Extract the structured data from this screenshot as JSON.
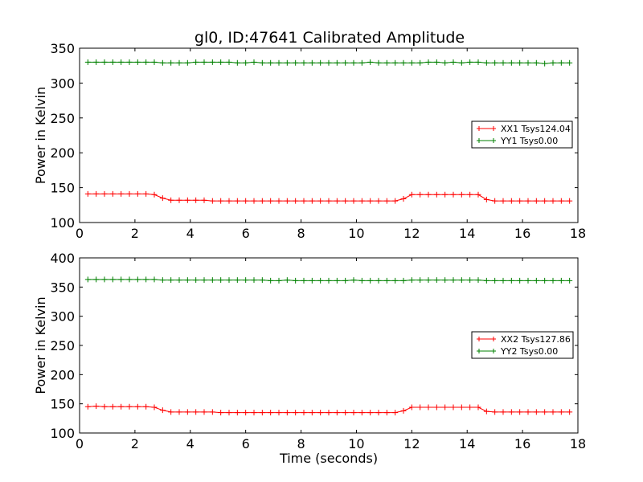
{
  "title": "gl0, ID:47641 Calibrated Amplitude",
  "chart_data": [
    {
      "type": "line",
      "title": "gl0, ID:47641 Calibrated Amplitude",
      "xlabel": "",
      "ylabel": "Power in Kelvin",
      "xlim": [
        0,
        18
      ],
      "ylim": [
        100,
        350
      ],
      "xticks": [
        0,
        2,
        4,
        6,
        8,
        10,
        12,
        14,
        16,
        18
      ],
      "yticks": [
        100,
        150,
        200,
        250,
        300,
        350
      ],
      "legend_position": "center-right",
      "x": [
        0.3,
        0.6,
        0.9,
        1.2,
        1.5,
        1.8,
        2.1,
        2.4,
        2.7,
        3.0,
        3.3,
        3.6,
        3.9,
        4.2,
        4.5,
        4.8,
        5.1,
        5.4,
        5.7,
        6.0,
        6.3,
        6.6,
        6.9,
        7.2,
        7.5,
        7.8,
        8.1,
        8.4,
        8.7,
        9.0,
        9.3,
        9.6,
        9.9,
        10.2,
        10.5,
        10.8,
        11.1,
        11.4,
        11.7,
        12.0,
        12.3,
        12.6,
        12.9,
        13.2,
        13.5,
        13.8,
        14.1,
        14.4,
        14.7,
        15.0,
        15.3,
        15.6,
        15.9,
        16.2,
        16.5,
        16.8,
        17.1,
        17.4,
        17.7
      ],
      "series": [
        {
          "name": "XX1 Tsys124.04",
          "color": "#ff0000",
          "values": [
            141,
            141,
            141,
            141,
            141,
            141,
            141,
            141,
            140,
            135,
            132,
            132,
            132,
            132,
            132,
            131,
            131,
            131,
            131,
            131,
            131,
            131,
            131,
            131,
            131,
            131,
            131,
            131,
            131,
            131,
            131,
            131,
            131,
            131,
            131,
            131,
            131,
            131,
            134,
            140,
            140,
            140,
            140,
            140,
            140,
            140,
            140,
            140,
            133,
            131,
            131,
            131,
            131,
            131,
            131,
            131,
            131,
            131,
            131
          ]
        },
        {
          "name": "YY1 Tsys0.00",
          "color": "#008000",
          "values": [
            330,
            330,
            330,
            330,
            330,
            330,
            330,
            330,
            330,
            329,
            329,
            329,
            329,
            330,
            330,
            330,
            330,
            330,
            329,
            329,
            330,
            329,
            329,
            329,
            329,
            329,
            329,
            329,
            329,
            329,
            329,
            329,
            329,
            329,
            330,
            329,
            329,
            329,
            329,
            329,
            329,
            330,
            330,
            329,
            330,
            329,
            330,
            330,
            329,
            329,
            329,
            329,
            329,
            329,
            329,
            328,
            329,
            329,
            329
          ]
        }
      ]
    },
    {
      "type": "line",
      "title": "",
      "xlabel": "Time (seconds)",
      "ylabel": "Power in Kelvin",
      "xlim": [
        0,
        18
      ],
      "ylim": [
        100,
        400
      ],
      "xticks": [
        0,
        2,
        4,
        6,
        8,
        10,
        12,
        14,
        16,
        18
      ],
      "yticks": [
        100,
        150,
        200,
        250,
        300,
        350,
        400
      ],
      "legend_position": "center-right",
      "x": [
        0.3,
        0.6,
        0.9,
        1.2,
        1.5,
        1.8,
        2.1,
        2.4,
        2.7,
        3.0,
        3.3,
        3.6,
        3.9,
        4.2,
        4.5,
        4.8,
        5.1,
        5.4,
        5.7,
        6.0,
        6.3,
        6.6,
        6.9,
        7.2,
        7.5,
        7.8,
        8.1,
        8.4,
        8.7,
        9.0,
        9.3,
        9.6,
        9.9,
        10.2,
        10.5,
        10.8,
        11.1,
        11.4,
        11.7,
        12.0,
        12.3,
        12.6,
        12.9,
        13.2,
        13.5,
        13.8,
        14.1,
        14.4,
        14.7,
        15.0,
        15.3,
        15.6,
        15.9,
        16.2,
        16.5,
        16.8,
        17.1,
        17.4,
        17.7
      ],
      "series": [
        {
          "name": "XX2 Tsys127.86",
          "color": "#ff0000",
          "values": [
            145,
            146,
            145,
            145,
            145,
            145,
            145,
            145,
            144,
            139,
            136,
            136,
            136,
            136,
            136,
            136,
            135,
            135,
            135,
            135,
            135,
            135,
            135,
            135,
            135,
            135,
            135,
            135,
            135,
            135,
            135,
            135,
            135,
            135,
            135,
            135,
            135,
            135,
            138,
            144,
            144,
            144,
            144,
            144,
            144,
            144,
            144,
            144,
            137,
            136,
            136,
            136,
            136,
            136,
            136,
            136,
            136,
            136,
            136
          ]
        },
        {
          "name": "YY2 Tsys0.00",
          "color": "#008000",
          "values": [
            363,
            363,
            363,
            363,
            363,
            363,
            363,
            363,
            363,
            362,
            362,
            362,
            362,
            362,
            362,
            362,
            362,
            362,
            362,
            362,
            362,
            362,
            361,
            361,
            362,
            361,
            361,
            361,
            361,
            361,
            361,
            361,
            362,
            361,
            361,
            361,
            361,
            361,
            361,
            362,
            362,
            362,
            362,
            362,
            362,
            362,
            362,
            362,
            361,
            361,
            361,
            361,
            361,
            361,
            361,
            361,
            361,
            361,
            361
          ]
        }
      ]
    }
  ]
}
